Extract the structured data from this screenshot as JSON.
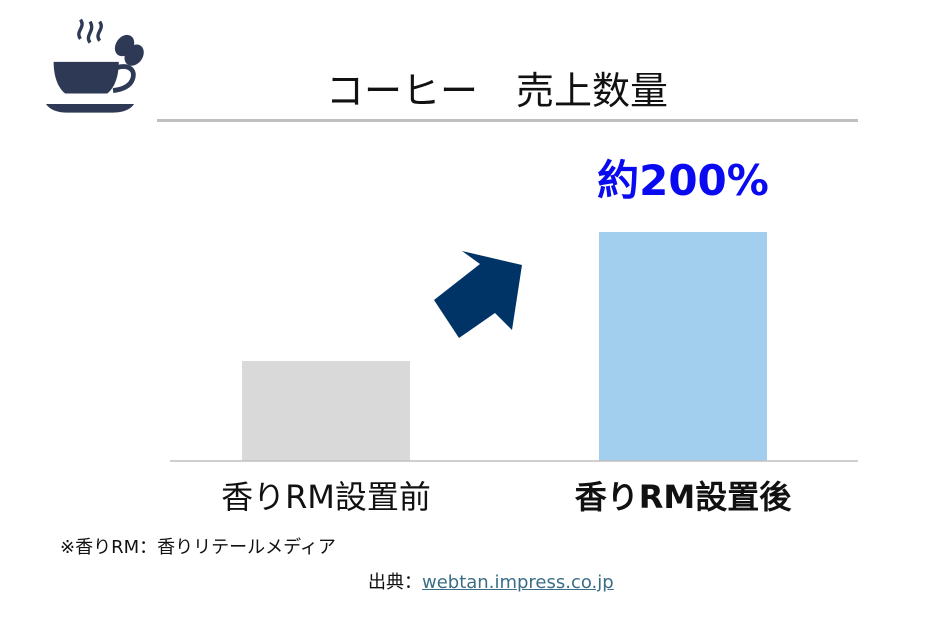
{
  "title": "コーヒー　売上数量",
  "icon": "coffee-cup-icon",
  "chart_data": {
    "type": "bar",
    "title": "コーヒー　売上数量",
    "categories": [
      "香りRM設置前",
      "香りRM設置後"
    ],
    "values": [
      100,
      229
    ],
    "annotation": "約200%",
    "colors": [
      "#d9d9d9",
      "#a3cfee"
    ],
    "annotation_color": "#0a0af0",
    "arrow_color": "#003366",
    "grid": false,
    "ylim": [
      0,
      250
    ]
  },
  "note": "※香りRM：香りリテールメディア",
  "source": {
    "label": "出典：",
    "link": "webtan.impress.co.jp"
  }
}
